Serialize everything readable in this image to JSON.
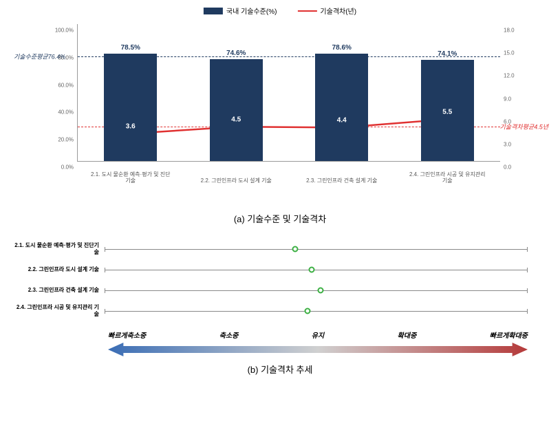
{
  "topChart": {
    "type": "bar+line",
    "legend": {
      "bar": {
        "label": "국내 기술수준(%)",
        "color": "#1f3a5f"
      },
      "line": {
        "label": "기술격차(년)",
        "color": "#e03131"
      }
    },
    "categories": [
      "2.1. 도시 물순환 예측·평가 및 진단기술",
      "2.2. 그린인프라 도시 설계 기술",
      "2.3. 그린인프라 건축 설계 기술",
      "2.4. 그린인프라 시공 및 유지관리 기술"
    ],
    "bar": {
      "values": [
        78.5,
        74.6,
        78.6,
        74.1
      ],
      "labels": [
        "78.5%",
        "74.6%",
        "78.6%",
        "74.1%"
      ],
      "color": "#1f3a5f",
      "width_pct": 0.5
    },
    "line": {
      "values": [
        3.6,
        4.5,
        4.4,
        5.5
      ],
      "labels": [
        "3.6",
        "4.5",
        "4.4",
        "5.5"
      ],
      "color": "#e03131"
    },
    "yleft": {
      "min": 0,
      "max": 100,
      "step": 20,
      "ticks": [
        "0.0%",
        "20.0%",
        "40.0%",
        "60.0%",
        "80.0%",
        "100.0%"
      ]
    },
    "yright": {
      "min": 0,
      "max": 18,
      "step": 3,
      "ticks": [
        "0.0",
        "3.0",
        "6.0",
        "9.0",
        "12.0",
        "15.0",
        "18.0"
      ]
    },
    "avgLeft": {
      "value": 76.4,
      "label": "기술수준평균76.4%",
      "color": "#1f3a5f"
    },
    "avgRight": {
      "value": 4.5,
      "label": "기술격차평균4.5년",
      "color": "#e03131"
    },
    "caption": "(a) 기술수준 및 기술격차"
  },
  "botChart": {
    "type": "dotplot",
    "labels": [
      "2.1. 도시 물순환 예측·평가 및 진단기술",
      "2.2. 그린인프라 도시 설계 기술",
      "2.3. 그린인프라 건축 설계 기술",
      "2.4. 그린인프라 시공 및 유지관리 기술"
    ],
    "positions_pct": [
      45,
      49,
      51,
      48
    ],
    "dot_color": "#3cb043",
    "scale_labels": [
      "빠르게축소중",
      "축소중",
      "유지",
      "확대중",
      "빠르게확대중"
    ],
    "arrow_left_color": "#3a6db5",
    "arrow_right_color": "#b53a3a",
    "caption": "(b) 기술격차 추세"
  }
}
